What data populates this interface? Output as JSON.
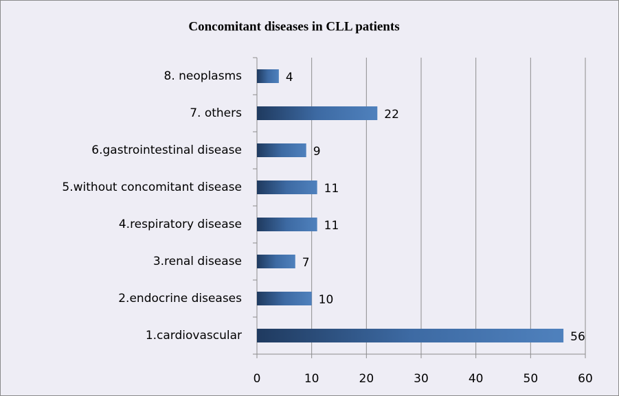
{
  "chart_data": {
    "type": "bar",
    "orientation": "horizontal",
    "title": "Concomitant diseases in CLL patients",
    "categories": [
      "1.cardiovascular",
      "2.endocrine diseases",
      "3.renal disease",
      "4.respiratory disease",
      "5.without concomitant disease",
      "6.gastrointestinal disease",
      "7. others",
      "8. neoplasms"
    ],
    "values": [
      56,
      10,
      7,
      11,
      11,
      9,
      22,
      4
    ],
    "color": "#4f81bd",
    "xlim": [
      0,
      60
    ],
    "xticks": [
      0,
      10,
      20,
      30,
      40,
      50,
      60
    ],
    "grid": true
  }
}
